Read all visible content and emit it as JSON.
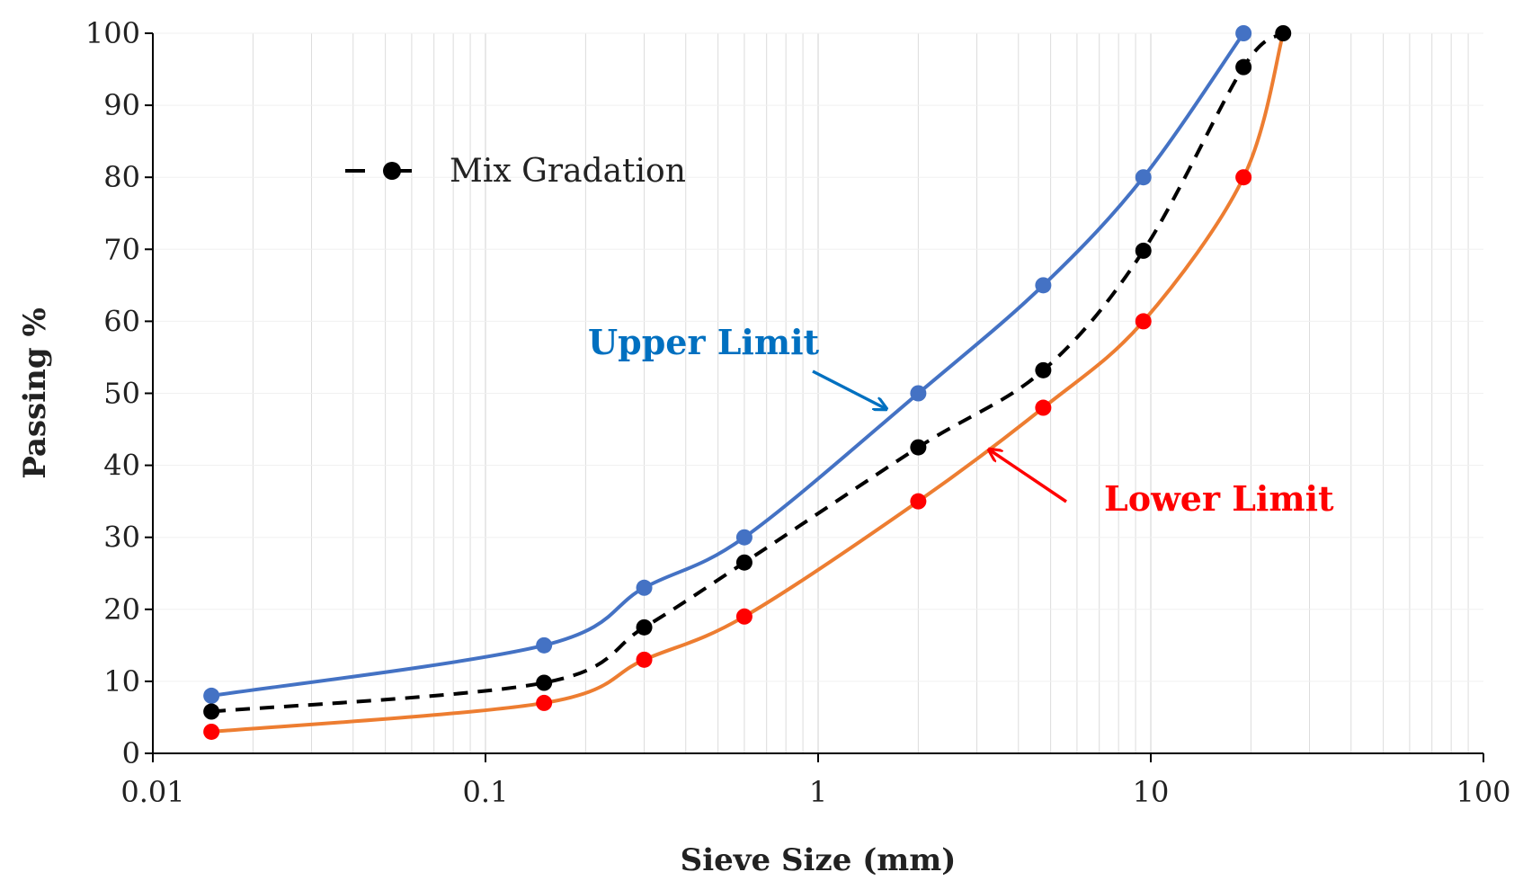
{
  "chart_data": {
    "type": "line",
    "title": "",
    "xlabel": "Sieve Size (mm)",
    "ylabel": "Passing %",
    "xscale": "log",
    "xlim": [
      0.01,
      100
    ],
    "ylim": [
      0,
      100
    ],
    "x_ticks": [
      0.01,
      0.1,
      1,
      10,
      100
    ],
    "x_tick_labels": [
      "0.01",
      "0.1",
      "1",
      "10",
      "100"
    ],
    "y_ticks": [
      0,
      10,
      20,
      30,
      40,
      50,
      60,
      70,
      80,
      90,
      100
    ],
    "y_tick_labels": [
      "0",
      "10",
      "20",
      "30",
      "40",
      "50",
      "60",
      "70",
      "80",
      "90",
      "100"
    ],
    "grid": "vertical",
    "legend": {
      "placement": "top-left",
      "entries": [
        "Mix Gradation"
      ]
    },
    "series": [
      {
        "name": "Upper Limit",
        "label": "Upper Limit",
        "line_color": "#4472C4",
        "marker_color": "#4472C4",
        "label_color": "#0070C0",
        "dashed": false,
        "x": [
          0.015,
          0.15,
          0.3,
          0.6,
          2.0,
          4.75,
          9.5,
          19.0
        ],
        "values": [
          8,
          15,
          23,
          30,
          50,
          65,
          80,
          100
        ]
      },
      {
        "name": "Mix Gradation",
        "label": "Mix Gradation",
        "line_color": "#000000",
        "marker_color": "#000000",
        "label_color": "#222222",
        "dashed": true,
        "x": [
          0.015,
          0.15,
          0.3,
          0.6,
          2.0,
          4.75,
          9.5,
          19.0,
          25.0
        ],
        "values": [
          5.8,
          9.8,
          17.5,
          26.5,
          42.5,
          53.2,
          69.8,
          95.3,
          100
        ]
      },
      {
        "name": "Lower Limit",
        "label": "Lower Limit",
        "line_color": "#ED7D31",
        "marker_color": "#FF0000",
        "label_color": "#FF0000",
        "dashed": false,
        "x": [
          0.015,
          0.15,
          0.3,
          0.6,
          2.0,
          4.75,
          9.5,
          19.0,
          25.0
        ],
        "values": [
          3,
          7,
          13,
          19,
          35,
          48,
          60,
          80,
          100
        ],
        "marker_mask": [
          true,
          true,
          true,
          true,
          true,
          true,
          true,
          true,
          false
        ]
      }
    ]
  }
}
